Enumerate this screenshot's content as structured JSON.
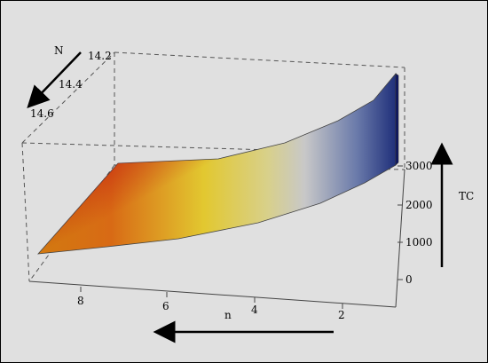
{
  "chart_data": {
    "type": "surface3d",
    "x_axis": {
      "label": "n",
      "ticks": [
        "8",
        "6",
        "4",
        "2"
      ]
    },
    "y_axis": {
      "label": "N",
      "ticks": [
        "14.2",
        "14.4",
        "14.6"
      ]
    },
    "z_axis": {
      "label": "TC",
      "ticks": [
        "0",
        "1000",
        "2000",
        "3000"
      ]
    },
    "surface": {
      "description_values": [
        {
          "n": 9.5,
          "TC": 300
        },
        {
          "n": 6.5,
          "TC": 900
        },
        {
          "n": 4,
          "TC": 1400
        },
        {
          "n": 2,
          "TC": 2300
        },
        {
          "n": 1,
          "TC": 3400
        }
      ]
    },
    "colormap": [
      "#c81e10",
      "#e07818",
      "#e8c830",
      "#c8c878",
      "#b8bcc8",
      "#7888a8",
      "#0a1a6e"
    ],
    "arrows": [
      "x-direction",
      "y-direction",
      "z-direction"
    ]
  }
}
